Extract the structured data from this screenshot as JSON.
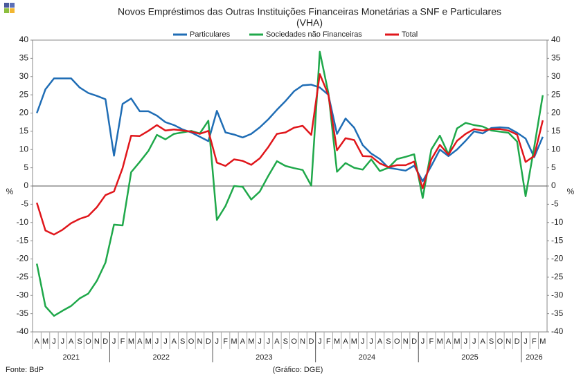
{
  "chart_data": {
    "type": "line",
    "title": "Novos Empréstimos das Outras Instituições Financeiras Monetárias a SNF e Particulares",
    "subtitle": "(VHA)",
    "y_label": "%",
    "source": "Fonte: BdP",
    "credit": "(Gráfico: DGE)",
    "categories": [
      "A",
      "M",
      "J",
      "J",
      "A",
      "S",
      "O",
      "N",
      "D",
      "J",
      "F",
      "M",
      "A",
      "M",
      "J",
      "J",
      "A",
      "S",
      "O",
      "N",
      "D",
      "J",
      "F",
      "M",
      "A",
      "M",
      "J",
      "J",
      "A",
      "S",
      "O",
      "N",
      "D",
      "J",
      "F",
      "M",
      "A",
      "M",
      "J",
      "J",
      "A",
      "S",
      "O",
      "N",
      "D",
      "J",
      "F",
      "M",
      "A",
      "M",
      "J",
      "J",
      "A",
      "S",
      "O",
      "N",
      "D",
      "J",
      "F",
      "M"
    ],
    "years": [
      "2021",
      "2022",
      "2023",
      "2024",
      "2025",
      "2026"
    ],
    "ylim": [
      -40,
      40
    ],
    "yticks": [
      -40,
      -35,
      -30,
      -25,
      -20,
      -15,
      -10,
      -5,
      0,
      5,
      10,
      15,
      20,
      25,
      30,
      35,
      40
    ],
    "series": [
      {
        "name": "Particulares",
        "color": "#1f6db5",
        "values": [
          20,
          26.5,
          29.5,
          29.5,
          29.5,
          27,
          25.5,
          24.7,
          23.8,
          8.3,
          22.5,
          24,
          20.5,
          20.5,
          19.3,
          17.5,
          16.7,
          15.5,
          14.7,
          13.5,
          12.3,
          20.6,
          14.7,
          14.1,
          13.3,
          14.3,
          16.1,
          18.3,
          20.9,
          23.3,
          26,
          27.6,
          27.8,
          27,
          25,
          14.3,
          18.5,
          16,
          11.2,
          8.9,
          7.4,
          5,
          4.6,
          4.2,
          5.6,
          1.3,
          5.5,
          10,
          8.2,
          10,
          12.4,
          15,
          14.4,
          15.9,
          16.1,
          15.9,
          14.6,
          13,
          7.9,
          13.5
        ]
      },
      {
        "name": "Sociedades não Financeiras",
        "color": "#1fa84a",
        "values": [
          -21.3,
          -33,
          -35.6,
          -34.2,
          -32.9,
          -30.8,
          -29.5,
          -26,
          -21,
          -10.6,
          -10.8,
          3.8,
          6.6,
          9.6,
          14,
          12.8,
          14.3,
          14.7,
          15.1,
          14.4,
          17.9,
          -9.3,
          -5.5,
          0,
          -0.2,
          -3.7,
          -1.5,
          2.8,
          6.8,
          5.5,
          4.9,
          4.4,
          0.1,
          36.8,
          25.5,
          3.9,
          6.3,
          5,
          4.5,
          7.3,
          4.1,
          5,
          7.4,
          8,
          8.7,
          -3.3,
          10,
          13.8,
          8.7,
          15.8,
          17.3,
          16.7,
          16.3,
          15.2,
          14.9,
          14.6,
          12.2,
          -2.8,
          10.6,
          24.9
        ]
      },
      {
        "name": "Total",
        "color": "#e0161b",
        "values": [
          -4.6,
          -12.2,
          -13.3,
          -12,
          -10.2,
          -9,
          -8.2,
          -5.8,
          -2.5,
          -1.5,
          4.9,
          13.8,
          13.7,
          15.1,
          16.7,
          15.2,
          15.5,
          15.2,
          14.9,
          14.3,
          15.1,
          6.4,
          5.5,
          7.3,
          6.9,
          5.8,
          7.6,
          10.7,
          14.3,
          14.7,
          16,
          16.5,
          14,
          30.7,
          25,
          9.8,
          13.1,
          12.6,
          8.2,
          8.1,
          6.2,
          5.2,
          5.7,
          5.7,
          6.7,
          -0.6,
          7.3,
          11.3,
          8.6,
          12.4,
          14.3,
          15.6,
          15.2,
          15.6,
          15.6,
          15.2,
          14.1,
          6.6,
          8.2,
          18
        ]
      }
    ]
  }
}
